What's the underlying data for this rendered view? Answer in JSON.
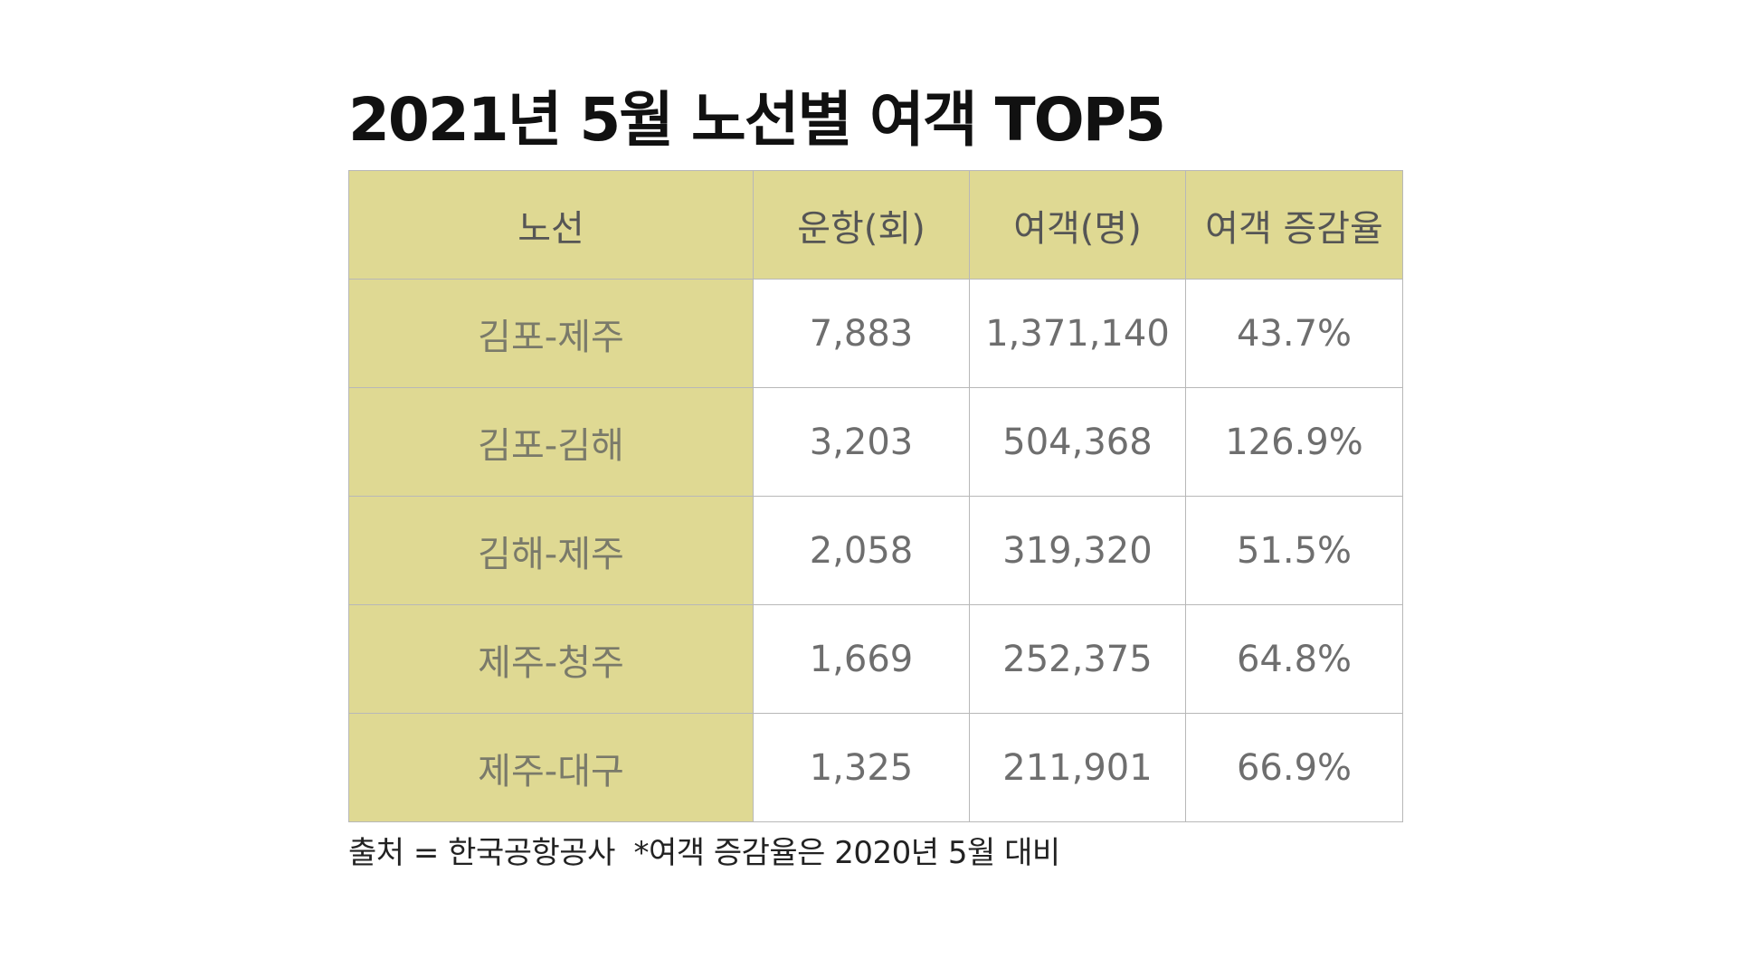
{
  "title": "2021년 5월 노선별 여객 TOP5",
  "table": {
    "headers": [
      "노선",
      "운항(회)",
      "여객(명)",
      "여객 증감율"
    ],
    "rows": [
      {
        "route": "김포-제주",
        "flights": "7,883",
        "passengers": "1,371,140",
        "change": "43.7%"
      },
      {
        "route": "김포-김해",
        "flights": "3,203",
        "passengers": "504,368",
        "change": "126.9%"
      },
      {
        "route": "김해-제주",
        "flights": "2,058",
        "passengers": "319,320",
        "change": "51.5%"
      },
      {
        "route": "제주-청주",
        "flights": "1,669",
        "passengers": "252,375",
        "change": "64.8%"
      },
      {
        "route": "제주-대구",
        "flights": "1,325",
        "passengers": "211,901",
        "change": "66.9%"
      }
    ]
  },
  "footnote": "출처 = 한국공항공사  *여객 증감율은 2020년 5월 대비",
  "colors": {
    "header_fill": "#dfd993",
    "grid": "#b8b8b8"
  }
}
